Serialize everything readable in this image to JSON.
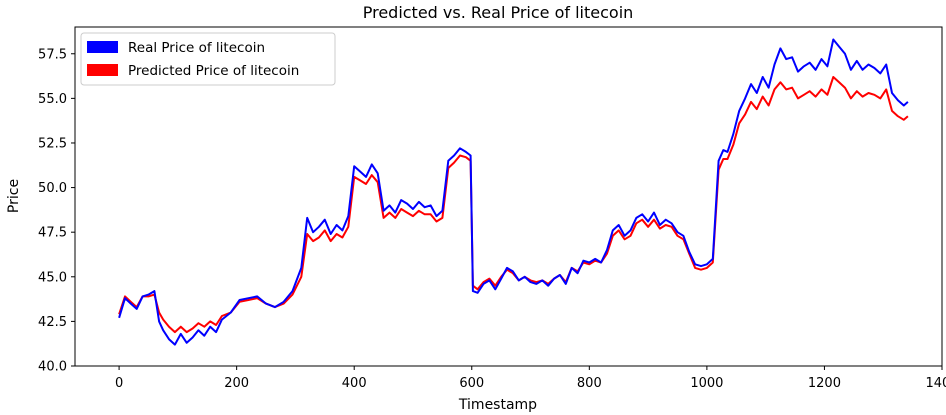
{
  "chart_data": {
    "type": "line",
    "title": "Predicted vs. Real Price of litecoin",
    "xlabel": "Timestamp",
    "ylabel": "Price",
    "xlim": [
      -75,
      1400
    ],
    "ylim": [
      40.0,
      59.0
    ],
    "xticks": [
      0,
      200,
      400,
      600,
      800,
      1000,
      1200,
      1400
    ],
    "xtick_labels": [
      "0",
      "200",
      "400",
      "600",
      "800",
      "1000",
      "1200",
      "1400"
    ],
    "yticks": [
      40.0,
      42.5,
      45.0,
      47.5,
      50.0,
      52.5,
      55.0,
      57.5
    ],
    "ytick_labels": [
      "40.0",
      "42.5",
      "45.0",
      "47.5",
      "50.0",
      "52.5",
      "55.0",
      "57.5"
    ],
    "grid": false,
    "legend_position": "top-left",
    "series": [
      {
        "name": "Real Price of litecoin",
        "color": "#0000ff",
        "x": [
          0,
          10,
          20,
          30,
          40,
          50,
          60,
          68,
          75,
          85,
          95,
          105,
          115,
          125,
          135,
          145,
          155,
          165,
          175,
          190,
          205,
          220,
          235,
          250,
          265,
          280,
          295,
          310,
          320,
          330,
          340,
          350,
          360,
          370,
          380,
          390,
          400,
          410,
          420,
          430,
          440,
          450,
          460,
          470,
          480,
          490,
          500,
          510,
          520,
          530,
          540,
          550,
          560,
          570,
          580,
          590,
          598,
          602,
          610,
          620,
          630,
          640,
          650,
          660,
          670,
          680,
          690,
          700,
          710,
          720,
          730,
          740,
          750,
          760,
          770,
          780,
          790,
          800,
          810,
          820,
          830,
          840,
          850,
          860,
          870,
          880,
          890,
          900,
          910,
          920,
          930,
          940,
          950,
          960,
          970,
          980,
          990,
          1000,
          1010,
          1020,
          1028,
          1035,
          1045,
          1055,
          1065,
          1075,
          1085,
          1095,
          1105,
          1115,
          1125,
          1135,
          1145,
          1155,
          1165,
          1175,
          1185,
          1195,
          1205,
          1215,
          1225,
          1235,
          1245,
          1255,
          1265,
          1275,
          1285,
          1295,
          1305,
          1315,
          1325,
          1335,
          1342
        ],
        "values": [
          42.7,
          43.8,
          43.5,
          43.2,
          43.9,
          44.0,
          44.2,
          42.5,
          42.0,
          41.5,
          41.2,
          41.8,
          41.3,
          41.6,
          42.0,
          41.7,
          42.2,
          41.9,
          42.6,
          43.0,
          43.7,
          43.8,
          43.9,
          43.5,
          43.3,
          43.6,
          44.2,
          45.5,
          48.3,
          47.5,
          47.8,
          48.2,
          47.4,
          47.9,
          47.6,
          48.4,
          51.2,
          50.9,
          50.6,
          51.3,
          50.8,
          48.7,
          49.0,
          48.6,
          49.3,
          49.1,
          48.8,
          49.2,
          48.9,
          49.0,
          48.4,
          48.7,
          51.5,
          51.8,
          52.2,
          52.0,
          51.8,
          44.2,
          44.1,
          44.6,
          44.8,
          44.3,
          44.9,
          45.5,
          45.3,
          44.8,
          45.0,
          44.7,
          44.6,
          44.8,
          44.5,
          44.9,
          45.1,
          44.6,
          45.5,
          45.2,
          45.9,
          45.8,
          46.0,
          45.8,
          46.5,
          47.6,
          47.9,
          47.3,
          47.6,
          48.3,
          48.5,
          48.1,
          48.6,
          47.9,
          48.2,
          48.0,
          47.5,
          47.3,
          46.4,
          45.7,
          45.6,
          45.7,
          46.0,
          51.5,
          52.1,
          52.0,
          53.0,
          54.3,
          55.0,
          55.8,
          55.3,
          56.2,
          55.6,
          56.9,
          57.8,
          57.2,
          57.3,
          56.5,
          56.8,
          57.0,
          56.6,
          57.2,
          56.8,
          58.3,
          57.9,
          57.5,
          56.6,
          57.1,
          56.6,
          56.9,
          56.7,
          56.4,
          56.9,
          55.3,
          54.9,
          54.6,
          54.8
        ]
      },
      {
        "name": "Predicted Price of litecoin",
        "color": "#ff0000",
        "x": [
          0,
          10,
          20,
          30,
          40,
          50,
          60,
          68,
          75,
          85,
          95,
          105,
          115,
          125,
          135,
          145,
          155,
          165,
          175,
          190,
          205,
          220,
          235,
          250,
          265,
          280,
          295,
          310,
          320,
          330,
          340,
          350,
          360,
          370,
          380,
          390,
          400,
          410,
          420,
          430,
          440,
          450,
          460,
          470,
          480,
          490,
          500,
          510,
          520,
          530,
          540,
          550,
          560,
          570,
          580,
          590,
          598,
          602,
          610,
          620,
          630,
          640,
          650,
          660,
          670,
          680,
          690,
          700,
          710,
          720,
          730,
          740,
          750,
          760,
          770,
          780,
          790,
          800,
          810,
          820,
          830,
          840,
          850,
          860,
          870,
          880,
          890,
          900,
          910,
          920,
          930,
          940,
          950,
          960,
          970,
          980,
          990,
          1000,
          1010,
          1020,
          1028,
          1035,
          1045,
          1055,
          1065,
          1075,
          1085,
          1095,
          1105,
          1115,
          1125,
          1135,
          1145,
          1155,
          1165,
          1175,
          1185,
          1195,
          1205,
          1215,
          1225,
          1235,
          1245,
          1255,
          1265,
          1275,
          1285,
          1295,
          1305,
          1315,
          1325,
          1335,
          1342
        ],
        "values": [
          42.9,
          43.9,
          43.6,
          43.3,
          43.9,
          43.9,
          44.0,
          43.0,
          42.6,
          42.2,
          41.9,
          42.2,
          41.9,
          42.1,
          42.4,
          42.2,
          42.5,
          42.3,
          42.8,
          43.0,
          43.6,
          43.7,
          43.8,
          43.5,
          43.3,
          43.5,
          44.0,
          45.0,
          47.4,
          47.0,
          47.2,
          47.6,
          47.0,
          47.4,
          47.2,
          47.8,
          50.6,
          50.4,
          50.2,
          50.7,
          50.3,
          48.3,
          48.6,
          48.3,
          48.8,
          48.6,
          48.4,
          48.7,
          48.5,
          48.5,
          48.1,
          48.3,
          51.1,
          51.4,
          51.8,
          51.7,
          51.5,
          44.5,
          44.3,
          44.7,
          44.9,
          44.5,
          45.0,
          45.4,
          45.2,
          44.8,
          45.0,
          44.8,
          44.7,
          44.8,
          44.6,
          44.9,
          45.1,
          44.7,
          45.5,
          45.3,
          45.8,
          45.7,
          45.9,
          45.8,
          46.3,
          47.3,
          47.6,
          47.1,
          47.3,
          48.0,
          48.2,
          47.8,
          48.2,
          47.7,
          47.9,
          47.8,
          47.3,
          47.1,
          46.3,
          45.5,
          45.4,
          45.5,
          45.8,
          51.0,
          51.6,
          51.6,
          52.4,
          53.6,
          54.1,
          54.8,
          54.4,
          55.1,
          54.6,
          55.5,
          55.9,
          55.5,
          55.6,
          55.0,
          55.2,
          55.4,
          55.1,
          55.5,
          55.2,
          56.2,
          55.9,
          55.6,
          55.0,
          55.4,
          55.1,
          55.3,
          55.2,
          55.0,
          55.5,
          54.3,
          54.0,
          53.8,
          54.0
        ]
      }
    ]
  }
}
